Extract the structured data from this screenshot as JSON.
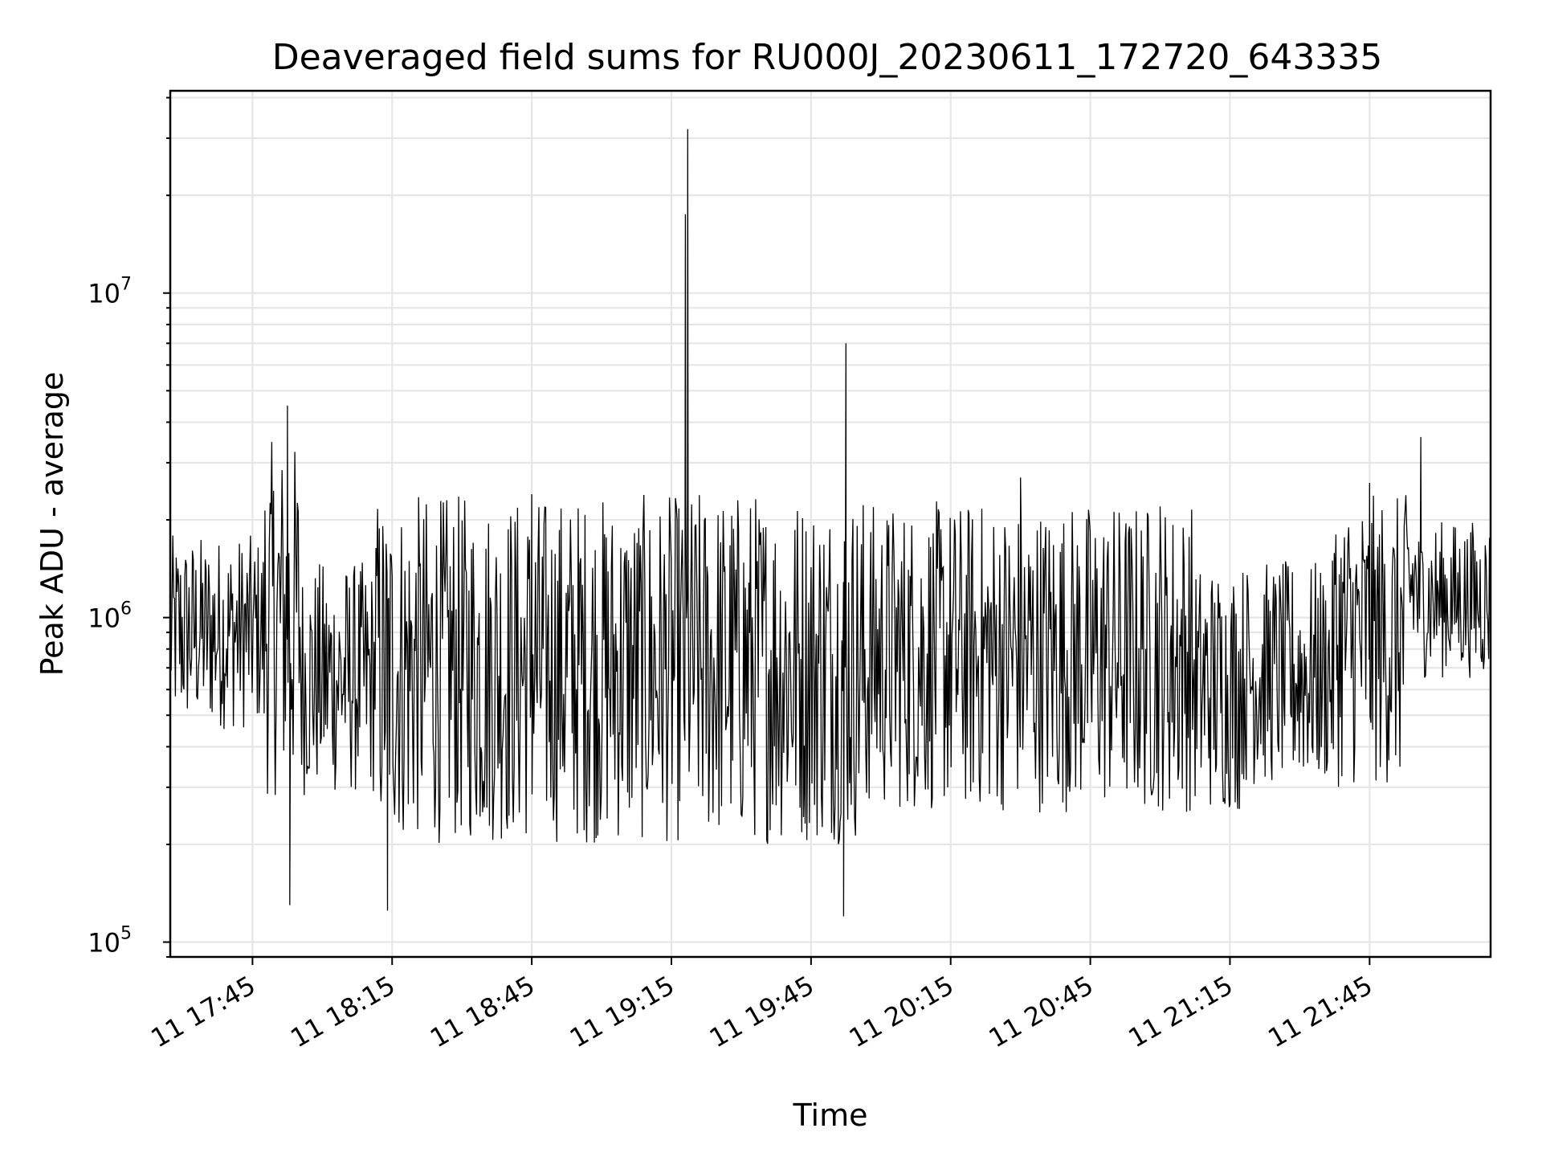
{
  "chart_data": {
    "type": "line",
    "title": "Deaveraged field sums for RU000J_20230611_172720_643335",
    "xlabel": "Time",
    "ylabel": "Peak ADU - average",
    "yscale": "log",
    "ylim": [
      90000,
      42000000
    ],
    "xlim": [
      "2023-06-11 17:27:20",
      "2023-06-11 22:11:00"
    ],
    "x_ticks": [
      "11 17:45",
      "11 18:15",
      "11 18:45",
      "11 19:15",
      "11 19:45",
      "11 20:15",
      "11 20:45",
      "11 21:15",
      "11 21:45"
    ],
    "y_ticks": [
      {
        "base": "10",
        "exp": "5",
        "value": 100000
      },
      {
        "base": "10",
        "exp": "6",
        "value": 1000000
      },
      {
        "base": "10",
        "exp": "7",
        "value": 10000000
      }
    ],
    "grid": true,
    "line_color": "#000000",
    "grid_color": "#e6e6e6",
    "series": [
      {
        "values_sample": [
          {
            "x": "2023-06-11 17:27:20",
            "y": 700000
          },
          {
            "x": "2023-06-11 17:52:30",
            "y": 4500000
          },
          {
            "x": "2023-06-11 17:53:00",
            "y": 130000
          },
          {
            "x": "2023-06-11 18:14:00",
            "y": 125000
          },
          {
            "x": "2023-06-11 18:45:00",
            "y": 2400000
          },
          {
            "x": "2023-06-11 19:18:00",
            "y": 17500000
          },
          {
            "x": "2023-06-11 19:18:30",
            "y": 32000000
          },
          {
            "x": "2023-06-11 19:52:30",
            "y": 7000000
          },
          {
            "x": "2023-06-11 19:52:00",
            "y": 120000
          },
          {
            "x": "2023-06-11 20:30:00",
            "y": 2700000
          },
          {
            "x": "2023-06-11 21:00:00",
            "y": 2200000
          },
          {
            "x": "2023-06-11 21:45:00",
            "y": 2600000
          },
          {
            "x": "2023-06-11 21:56:00",
            "y": 3600000
          },
          {
            "x": "2023-06-11 22:11:00",
            "y": 1200000
          }
        ]
      }
    ]
  }
}
